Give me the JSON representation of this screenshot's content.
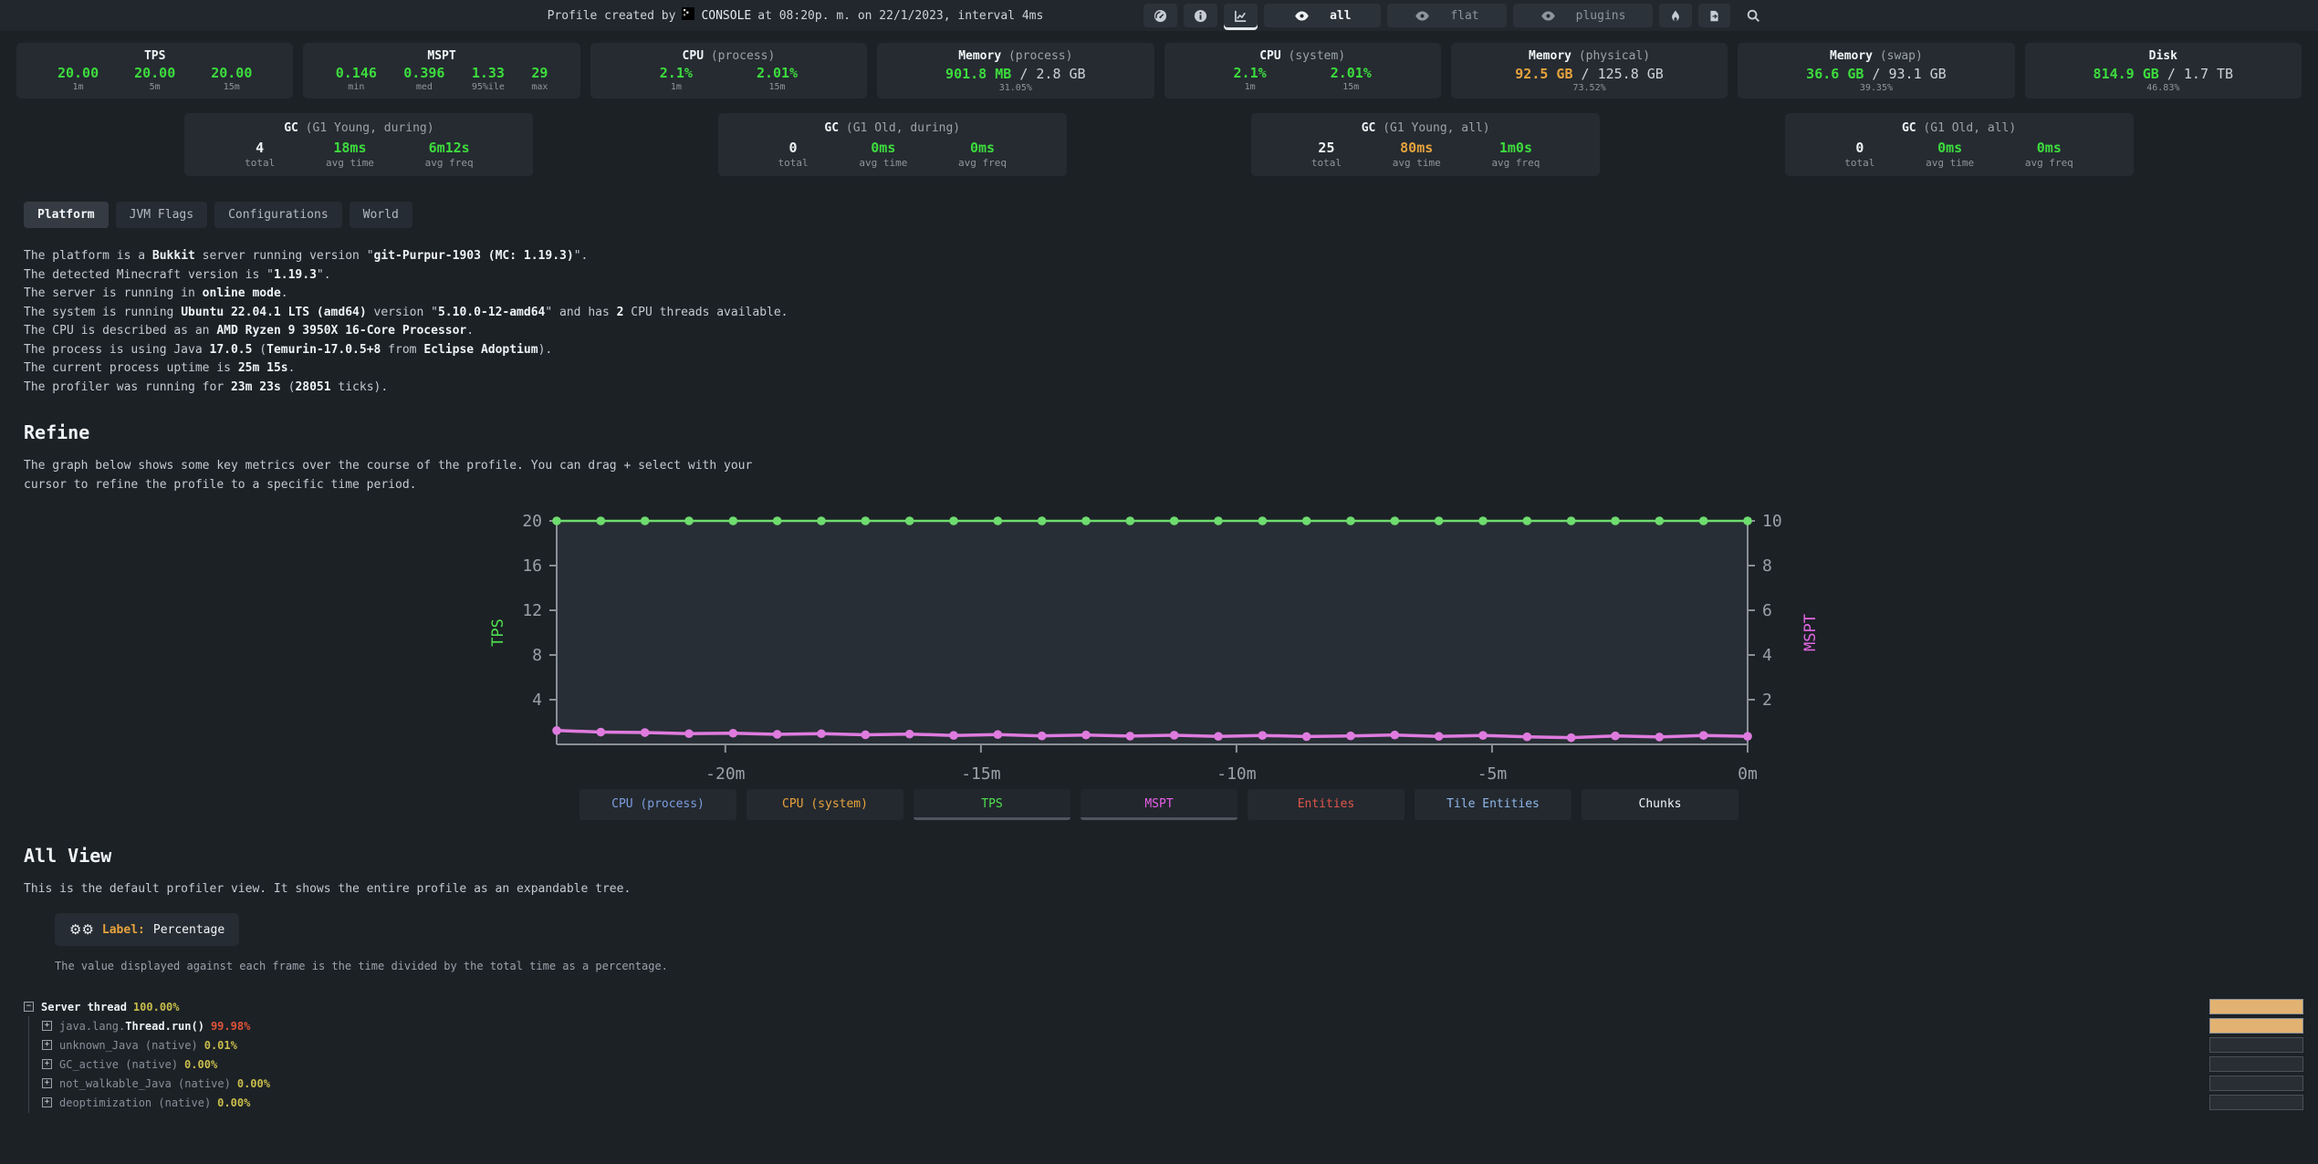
{
  "palette": {
    "background": "#1c2126",
    "panel": "#252b31",
    "green": "#3ddc3d",
    "orange": "#e8a33d",
    "yellow": "#c9bd4b",
    "red": "#e0533a",
    "chart_green": "#6edc6e",
    "chart_pink": "#df7bdf",
    "bar_fill": "#e2b272"
  },
  "header": {
    "title_prefix": "Profile created by",
    "user": "CONSOLE",
    "title_suffix": "at 08:20p. m. on 22/1/2023, interval 4ms",
    "controls": [
      {
        "icon": "gauge",
        "name": "gauge-button"
      },
      {
        "icon": "info",
        "name": "info-button"
      },
      {
        "icon": "chart",
        "name": "graph-view-button",
        "underline": true
      },
      {
        "icon": "eye",
        "label": "all",
        "name": "view-all-button",
        "active": true
      },
      {
        "icon": "eye",
        "label": "flat",
        "name": "view-flat-button",
        "dim": true
      },
      {
        "icon": "eye",
        "label": "plugins",
        "name": "view-plugins-button",
        "dim": true
      },
      {
        "icon": "flame",
        "name": "flame-button"
      },
      {
        "icon": "export",
        "name": "export-button"
      },
      {
        "icon": "search",
        "name": "search-button",
        "plain": true
      }
    ]
  },
  "stats": [
    {
      "key": "tps",
      "title": "TPS",
      "sub": "",
      "values": [
        {
          "v": "20.00",
          "label": "1m",
          "color": "green"
        },
        {
          "v": "20.00",
          "label": "5m",
          "color": "green"
        },
        {
          "v": "20.00",
          "label": "15m",
          "color": "green"
        }
      ]
    },
    {
      "key": "mspt",
      "title": "MSPT",
      "sub": "",
      "values": [
        {
          "v": "0.146",
          "label": "min",
          "color": "green"
        },
        {
          "v": "0.396",
          "label": "med",
          "color": "green"
        },
        {
          "v": "1.33",
          "label": "95%ile",
          "color": "green"
        },
        {
          "v": "29",
          "label": "max",
          "color": "green"
        }
      ]
    },
    {
      "key": "cpu-process",
      "title": "CPU",
      "sub": "(process)",
      "values": [
        {
          "v": "2.1%",
          "label": "1m",
          "color": "green"
        },
        {
          "v": "2.01%",
          "label": "15m",
          "color": "green"
        }
      ]
    },
    {
      "key": "memory-process",
      "title": "Memory",
      "sub": "(process)",
      "fraction": {
        "used": "901.8 MB",
        "total": "2.8 GB",
        "pct": "31.05%",
        "color": "green"
      }
    },
    {
      "key": "cpu-system",
      "title": "CPU",
      "sub": "(system)",
      "values": [
        {
          "v": "2.1%",
          "label": "1m",
          "color": "green"
        },
        {
          "v": "2.01%",
          "label": "15m",
          "color": "green"
        }
      ]
    },
    {
      "key": "memory-physical",
      "title": "Memory",
      "sub": "(physical)",
      "fraction": {
        "used": "92.5 GB",
        "total": "125.8 GB",
        "pct": "73.52%",
        "color": "orange"
      }
    },
    {
      "key": "memory-swap",
      "title": "Memory",
      "sub": "(swap)",
      "fraction": {
        "used": "36.6 GB",
        "total": "93.1 GB",
        "pct": "39.35%",
        "color": "green"
      }
    },
    {
      "key": "disk",
      "title": "Disk",
      "sub": "",
      "fraction": {
        "used": "814.9 GB",
        "total": "1.7 TB",
        "pct": "46.83%",
        "color": "green"
      }
    }
  ],
  "gc": [
    {
      "key": "g1-young-during",
      "title": "GC",
      "sub": "(G1 Young, during)",
      "cols": [
        {
          "v": "4",
          "label": "total",
          "color": "white"
        },
        {
          "v": "18ms",
          "label": "avg time",
          "color": "green"
        },
        {
          "v": "6m12s",
          "label": "avg freq",
          "color": "green"
        }
      ]
    },
    {
      "key": "g1-old-during",
      "title": "GC",
      "sub": "(G1 Old, during)",
      "cols": [
        {
          "v": "0",
          "label": "total",
          "color": "white"
        },
        {
          "v": "0ms",
          "label": "avg time",
          "color": "green"
        },
        {
          "v": "0ms",
          "label": "avg freq",
          "color": "green"
        }
      ]
    },
    {
      "key": "g1-young-all",
      "title": "GC",
      "sub": "(G1 Young, all)",
      "cols": [
        {
          "v": "25",
          "label": "total",
          "color": "white"
        },
        {
          "v": "80ms",
          "label": "avg time",
          "color": "orange"
        },
        {
          "v": "1m0s",
          "label": "avg freq",
          "color": "green"
        }
      ]
    },
    {
      "key": "g1-old-all",
      "title": "GC",
      "sub": "(G1 Old, all)",
      "cols": [
        {
          "v": "0",
          "label": "total",
          "color": "white"
        },
        {
          "v": "0ms",
          "label": "avg time",
          "color": "green"
        },
        {
          "v": "0ms",
          "label": "avg freq",
          "color": "green"
        }
      ]
    }
  ],
  "tabs": [
    {
      "label": "Platform",
      "active": true
    },
    {
      "label": "JVM Flags"
    },
    {
      "label": "Configurations"
    },
    {
      "label": "World"
    }
  ],
  "platform_lines": [
    [
      {
        "t": "The platform is a "
      },
      {
        "t": "Bukkit",
        "b": true
      },
      {
        "t": " server running version \""
      },
      {
        "t": "git-Purpur-1903 (MC: 1.19.3)",
        "b": true
      },
      {
        "t": "\"."
      }
    ],
    [
      {
        "t": "The detected Minecraft version is \""
      },
      {
        "t": "1.19.3",
        "b": true
      },
      {
        "t": "\"."
      }
    ],
    [
      {
        "t": "The server is running in "
      },
      {
        "t": "online mode",
        "b": true
      },
      {
        "t": "."
      }
    ],
    [
      {
        "t": "The system is running "
      },
      {
        "t": "Ubuntu 22.04.1 LTS (amd64)",
        "b": true
      },
      {
        "t": " version \""
      },
      {
        "t": "5.10.0-12-amd64",
        "b": true
      },
      {
        "t": "\" and has "
      },
      {
        "t": "2",
        "b": true
      },
      {
        "t": " CPU threads available."
      }
    ],
    [
      {
        "t": "The CPU is described as an "
      },
      {
        "t": "AMD Ryzen 9 3950X 16-Core Processor",
        "b": true
      },
      {
        "t": "."
      }
    ],
    [
      {
        "t": "The process is using Java "
      },
      {
        "t": "17.0.5",
        "b": true
      },
      {
        "t": " ("
      },
      {
        "t": "Temurin-17.0.5+8",
        "b": true
      },
      {
        "t": " from "
      },
      {
        "t": "Eclipse Adoptium",
        "b": true
      },
      {
        "t": ")."
      }
    ],
    [
      {
        "t": "The current process uptime is "
      },
      {
        "t": "25m 15s",
        "b": true
      },
      {
        "t": "."
      }
    ],
    [
      {
        "t": "The profiler was running for "
      },
      {
        "t": "23m 23s",
        "b": true
      },
      {
        "t": " ("
      },
      {
        "t": "28051",
        "b": true
      },
      {
        "t": " ticks)."
      }
    ]
  ],
  "refine": {
    "heading": "Refine",
    "description": "The graph below shows some key metrics over the course of the profile. You can drag + select with your\ncursor to refine the profile to a specific time period."
  },
  "chart_data": {
    "type": "line",
    "title": "",
    "x_range": [
      -23.3,
      0
    ],
    "x_ticks": [
      {
        "pos": -20,
        "label": "-20m"
      },
      {
        "pos": -15,
        "label": "-15m"
      },
      {
        "pos": -10,
        "label": "-10m"
      },
      {
        "pos": -5,
        "label": "-5m"
      },
      {
        "pos": 0,
        "label": "0m"
      }
    ],
    "left_axis": {
      "label": "TPS",
      "color": "#4ee04e",
      "ticks": [
        4,
        8,
        12,
        16,
        20
      ],
      "range": [
        0,
        20
      ]
    },
    "right_axis": {
      "label": "MSPT",
      "color": "#e266e2",
      "ticks": [
        2,
        4,
        6,
        8,
        10
      ],
      "range": [
        0,
        10
      ]
    },
    "grid": false,
    "series": [
      {
        "name": "TPS",
        "axis": "left",
        "color": "#6edc6e",
        "values": [
          20,
          20,
          20,
          20,
          20,
          20,
          20,
          20,
          20,
          20,
          20,
          20,
          20,
          20,
          20,
          20,
          20,
          20,
          20,
          20,
          20,
          20,
          20,
          20,
          20,
          20,
          20,
          20
        ]
      },
      {
        "name": "MSPT",
        "axis": "right",
        "color": "#df7bdf",
        "values": [
          0.62,
          0.55,
          0.53,
          0.48,
          0.5,
          0.45,
          0.48,
          0.43,
          0.46,
          0.4,
          0.44,
          0.38,
          0.42,
          0.37,
          0.41,
          0.36,
          0.4,
          0.35,
          0.38,
          0.42,
          0.36,
          0.4,
          0.34,
          0.3,
          0.38,
          0.33,
          0.4,
          0.36
        ]
      }
    ]
  },
  "legend": [
    {
      "label": "CPU (process)",
      "color": "#7d9fe0",
      "active": false
    },
    {
      "label": "CPU (system)",
      "color": "#e8a33d",
      "active": false
    },
    {
      "label": "TPS",
      "color": "#4ee04e",
      "active": true
    },
    {
      "label": "MSPT",
      "color": "#e85ee8",
      "active": true
    },
    {
      "label": "Entities",
      "color": "#e0564a",
      "active": false
    },
    {
      "label": "Tile Entities",
      "color": "#8fb8ea",
      "active": false
    },
    {
      "label": "Chunks",
      "color": "#f2f5f7",
      "active": false
    }
  ],
  "all_view": {
    "heading": "All View",
    "description": "This is the default profiler view. It shows the entire profile as an expandable tree.",
    "label_title": "Label:",
    "label_value": "Percentage",
    "label_note": "The value displayed against each frame is the time divided by the total time as a percentage."
  },
  "tree": {
    "rows": [
      {
        "depth": 0,
        "icon": "minus-box",
        "segments": [
          {
            "t": "Server thread",
            "c": "bright"
          }
        ],
        "pct": "100.00%",
        "pct_color": "yellow",
        "bar": 1
      },
      {
        "depth": 1,
        "icon": "plus-box",
        "segments": [
          {
            "t": "java.lang.",
            "c": "muted"
          },
          {
            "t": "Thread.run()",
            "c": "bright"
          }
        ],
        "pct": "99.98%",
        "pct_color": "red",
        "bar": 1
      },
      {
        "depth": 1,
        "icon": "plus-box",
        "segments": [
          {
            "t": "unknown_Java (native)",
            "c": "muted"
          }
        ],
        "pct": "0.01%",
        "pct_color": "yellow",
        "bar": 0
      },
      {
        "depth": 1,
        "icon": "plus-box",
        "segments": [
          {
            "t": "GC_active (native)",
            "c": "muted"
          }
        ],
        "pct": "0.00%",
        "pct_color": "yellow",
        "bar": 0
      },
      {
        "depth": 1,
        "icon": "plus-box",
        "segments": [
          {
            "t": "not_walkable_Java (native)",
            "c": "muted"
          }
        ],
        "pct": "0.00%",
        "pct_color": "yellow",
        "bar": 0
      },
      {
        "depth": 1,
        "icon": "plus-box",
        "segments": [
          {
            "t": "deoptimization (native)",
            "c": "muted"
          }
        ],
        "pct": "0.00%",
        "pct_color": "yellow",
        "bar": 0
      }
    ]
  }
}
